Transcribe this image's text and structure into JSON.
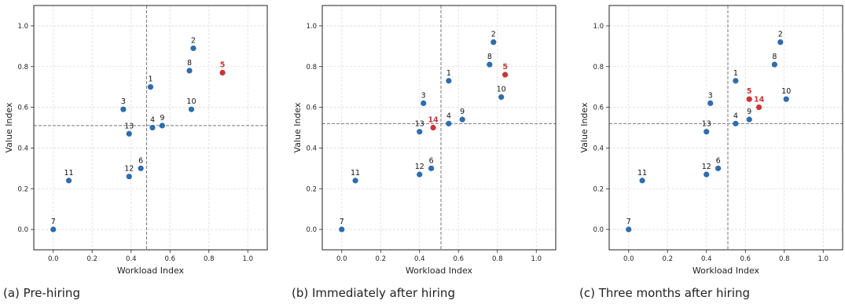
{
  "chart_data": [
    {
      "type": "scatter",
      "xlabel": "Workload Index",
      "ylabel": "Value Index",
      "xlim": [
        -0.1,
        1.1
      ],
      "ylim": [
        -0.1,
        1.1
      ],
      "ticks": [
        "0.0",
        "0.2",
        "0.4",
        "0.6",
        "0.8",
        "1.0"
      ],
      "grid": true,
      "reference_lines": {
        "x": 0.48,
        "y": 0.51
      },
      "points": [
        {
          "label": "1",
          "x": 0.5,
          "y": 0.7,
          "highlight": false
        },
        {
          "label": "2",
          "x": 0.72,
          "y": 0.89,
          "highlight": false
        },
        {
          "label": "3",
          "x": 0.36,
          "y": 0.59,
          "highlight": false
        },
        {
          "label": "4",
          "x": 0.51,
          "y": 0.5,
          "highlight": false
        },
        {
          "label": "5",
          "x": 0.87,
          "y": 0.77,
          "highlight": true
        },
        {
          "label": "6",
          "x": 0.45,
          "y": 0.3,
          "highlight": false
        },
        {
          "label": "7",
          "x": 0.0,
          "y": 0.0,
          "highlight": false
        },
        {
          "label": "8",
          "x": 0.7,
          "y": 0.78,
          "highlight": false
        },
        {
          "label": "9",
          "x": 0.56,
          "y": 0.51,
          "highlight": false
        },
        {
          "label": "10",
          "x": 0.71,
          "y": 0.59,
          "highlight": false
        },
        {
          "label": "11",
          "x": 0.08,
          "y": 0.24,
          "highlight": false
        },
        {
          "label": "12",
          "x": 0.39,
          "y": 0.26,
          "highlight": false
        },
        {
          "label": "13",
          "x": 0.39,
          "y": 0.47,
          "highlight": false
        }
      ],
      "caption": "(a) Pre-hiring"
    },
    {
      "type": "scatter",
      "xlabel": "Workload Index",
      "ylabel": "Value Index",
      "xlim": [
        -0.1,
        1.1
      ],
      "ylim": [
        -0.1,
        1.1
      ],
      "ticks": [
        "0.0",
        "0.2",
        "0.4",
        "0.6",
        "0.8",
        "1.0"
      ],
      "grid": true,
      "reference_lines": {
        "x": 0.51,
        "y": 0.52
      },
      "points": [
        {
          "label": "1",
          "x": 0.55,
          "y": 0.73,
          "highlight": false
        },
        {
          "label": "2",
          "x": 0.78,
          "y": 0.92,
          "highlight": false
        },
        {
          "label": "3",
          "x": 0.42,
          "y": 0.62,
          "highlight": false
        },
        {
          "label": "4",
          "x": 0.55,
          "y": 0.52,
          "highlight": false
        },
        {
          "label": "5",
          "x": 0.84,
          "y": 0.76,
          "highlight": true
        },
        {
          "label": "6",
          "x": 0.46,
          "y": 0.3,
          "highlight": false
        },
        {
          "label": "7",
          "x": 0.0,
          "y": 0.0,
          "highlight": false
        },
        {
          "label": "8",
          "x": 0.76,
          "y": 0.81,
          "highlight": false
        },
        {
          "label": "9",
          "x": 0.62,
          "y": 0.54,
          "highlight": false
        },
        {
          "label": "10",
          "x": 0.82,
          "y": 0.65,
          "highlight": false
        },
        {
          "label": "11",
          "x": 0.07,
          "y": 0.24,
          "highlight": false
        },
        {
          "label": "12",
          "x": 0.4,
          "y": 0.27,
          "highlight": false
        },
        {
          "label": "13",
          "x": 0.4,
          "y": 0.48,
          "highlight": false
        },
        {
          "label": "14",
          "x": 0.47,
          "y": 0.5,
          "highlight": true
        }
      ],
      "caption": "(b) Immediately after hiring"
    },
    {
      "type": "scatter",
      "xlabel": "Workload Index",
      "ylabel": "Value Index",
      "xlim": [
        -0.1,
        1.1
      ],
      "ylim": [
        -0.1,
        1.1
      ],
      "ticks": [
        "0.0",
        "0.2",
        "0.4",
        "0.6",
        "0.8",
        "1.0"
      ],
      "grid": true,
      "reference_lines": {
        "x": 0.51,
        "y": 0.52
      },
      "points": [
        {
          "label": "1",
          "x": 0.55,
          "y": 0.73,
          "highlight": false
        },
        {
          "label": "2",
          "x": 0.78,
          "y": 0.92,
          "highlight": false
        },
        {
          "label": "3",
          "x": 0.42,
          "y": 0.62,
          "highlight": false
        },
        {
          "label": "4",
          "x": 0.55,
          "y": 0.52,
          "highlight": false
        },
        {
          "label": "5",
          "x": 0.62,
          "y": 0.64,
          "highlight": true
        },
        {
          "label": "6",
          "x": 0.46,
          "y": 0.3,
          "highlight": false
        },
        {
          "label": "7",
          "x": 0.0,
          "y": 0.0,
          "highlight": false
        },
        {
          "label": "8",
          "x": 0.75,
          "y": 0.81,
          "highlight": false
        },
        {
          "label": "9",
          "x": 0.62,
          "y": 0.54,
          "highlight": false
        },
        {
          "label": "10",
          "x": 0.81,
          "y": 0.64,
          "highlight": false
        },
        {
          "label": "11",
          "x": 0.07,
          "y": 0.24,
          "highlight": false
        },
        {
          "label": "12",
          "x": 0.4,
          "y": 0.27,
          "highlight": false
        },
        {
          "label": "13",
          "x": 0.4,
          "y": 0.48,
          "highlight": false
        },
        {
          "label": "14",
          "x": 0.67,
          "y": 0.6,
          "highlight": true
        }
      ],
      "caption": "(c) Three months after hiring"
    }
  ],
  "colors": {
    "point": "#2e6cad",
    "highlight": "#cd3333",
    "reference_line": "#777777",
    "grid": "#dddddd",
    "axes": "#222222"
  }
}
